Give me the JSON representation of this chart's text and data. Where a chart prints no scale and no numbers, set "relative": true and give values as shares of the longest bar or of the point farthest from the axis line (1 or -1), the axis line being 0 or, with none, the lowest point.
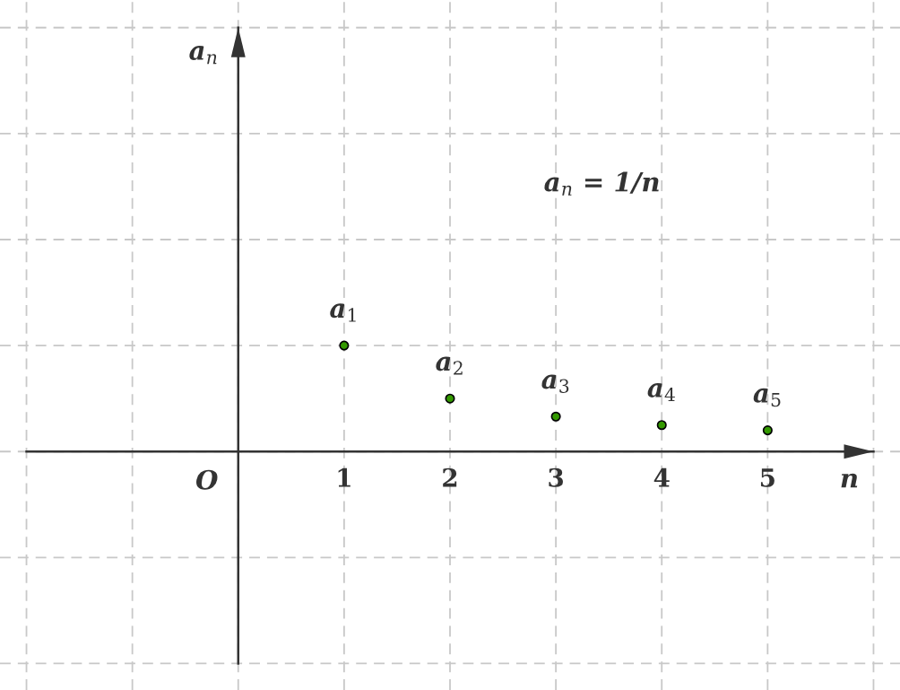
{
  "chart_data": {
    "type": "scatter",
    "xlabel": "n",
    "x": [
      1,
      2,
      3,
      4,
      5
    ],
    "values": [
      1,
      0.5,
      0.33,
      0.25,
      0.2
    ],
    "color": "#339900",
    "marker": "circle",
    "relative": true,
    "xlim": [
      -2.25,
      6.25
    ],
    "xticks": [
      {
        "value": -2,
        "label": null
      },
      {
        "value": -1,
        "label": null
      },
      {
        "value": 0,
        "label": null
      },
      1,
      2,
      3,
      4,
      5,
      {
        "value": 6,
        "label": null
      }
    ],
    "tick_labels": "x",
    "grid": true,
    "annotations": [
      {
        "text": "a$_{1}$",
        "x": 1,
        "y": 1
      },
      {
        "text": "a$_{2}$",
        "x": 2,
        "y": 0.5
      },
      {
        "text": "a$_{3}$",
        "x": 3,
        "y": 0.33
      },
      {
        "text": "a$_{4}$",
        "x": 4,
        "y": 0.25
      },
      {
        "text": "a$_{5}$",
        "x": 5,
        "y": 0.2
      },
      "a$_{n}$ = 1/n",
      "O",
      "a$_{n}$"
    ]
  }
}
